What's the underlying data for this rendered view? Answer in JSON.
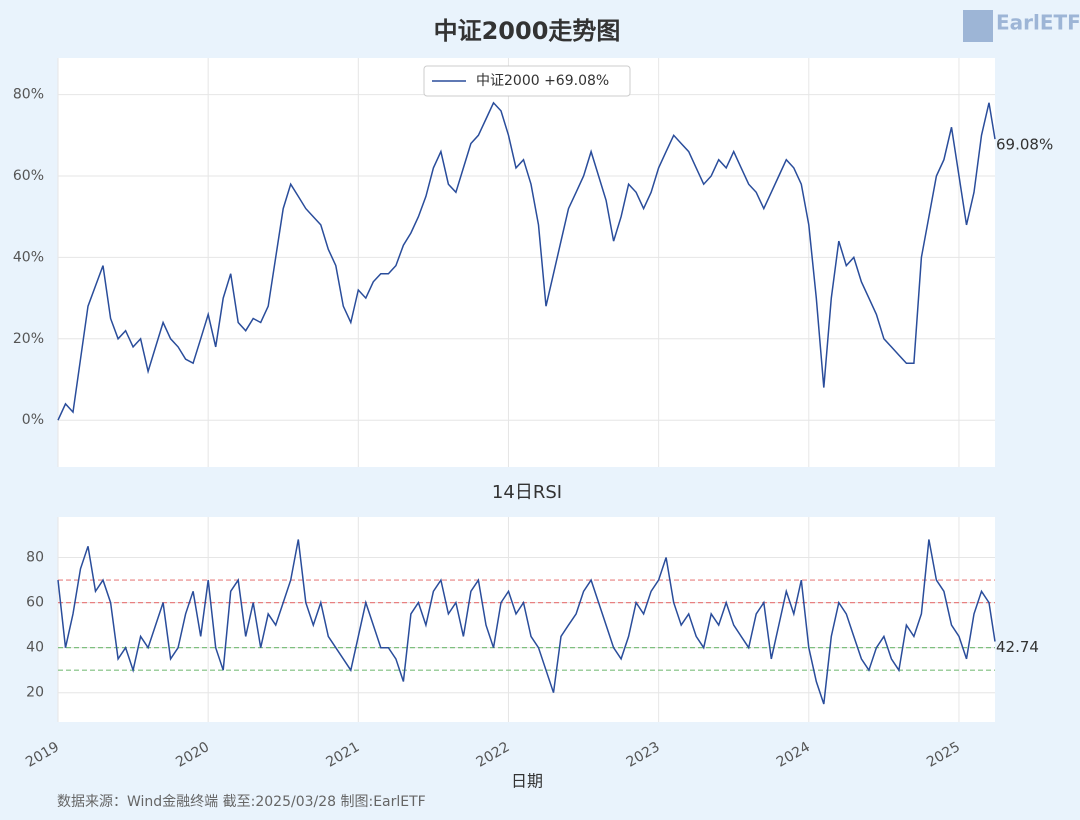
{
  "logo": "EarlETF",
  "source": "数据来源：Wind金融终端 截至:2025/03/28 制图:EarlETF",
  "chart_data": [
    {
      "type": "line",
      "title": "中证2000走势图",
      "x": [
        2019,
        2019.05,
        2019.1,
        2019.15,
        2019.2,
        2019.25,
        2019.3,
        2019.35,
        2019.4,
        2019.45,
        2019.5,
        2019.55,
        2019.6,
        2019.65,
        2019.7,
        2019.75,
        2019.8,
        2019.85,
        2019.9,
        2019.95,
        2020,
        2020.05,
        2020.1,
        2020.15,
        2020.2,
        2020.25,
        2020.3,
        2020.35,
        2020.4,
        2020.45,
        2020.5,
        2020.55,
        2020.6,
        2020.65,
        2020.7,
        2020.75,
        2020.8,
        2020.85,
        2020.9,
        2020.95,
        2021,
        2021.05,
        2021.1,
        2021.15,
        2021.2,
        2021.25,
        2021.3,
        2021.35,
        2021.4,
        2021.45,
        2021.5,
        2021.55,
        2021.6,
        2021.65,
        2021.7,
        2021.75,
        2021.8,
        2021.85,
        2021.9,
        2021.95,
        2022,
        2022.05,
        2022.1,
        2022.15,
        2022.2,
        2022.25,
        2022.3,
        2022.35,
        2022.4,
        2022.45,
        2022.5,
        2022.55,
        2022.6,
        2022.65,
        2022.7,
        2022.75,
        2022.8,
        2022.85,
        2022.9,
        2022.95,
        2023,
        2023.05,
        2023.1,
        2023.15,
        2023.2,
        2023.25,
        2023.3,
        2023.35,
        2023.4,
        2023.45,
        2023.5,
        2023.55,
        2023.6,
        2023.65,
        2023.7,
        2023.75,
        2023.8,
        2023.85,
        2023.9,
        2023.95,
        2024,
        2024.05,
        2024.1,
        2024.15,
        2024.2,
        2024.25,
        2024.3,
        2024.35,
        2024.4,
        2024.45,
        2024.5,
        2024.55,
        2024.6,
        2024.65,
        2024.7,
        2024.75,
        2024.8,
        2024.85,
        2024.9,
        2024.95,
        2025,
        2025.05,
        2025.1,
        2025.15,
        2025.2,
        2025.24
      ],
      "series": [
        {
          "name": "中证2000  +69.08%",
          "color": "#2a4d9b",
          "values": [
            0,
            4,
            2,
            15,
            28,
            33,
            38,
            25,
            20,
            22,
            18,
            20,
            12,
            18,
            24,
            20,
            18,
            15,
            14,
            20,
            26,
            18,
            30,
            36,
            24,
            22,
            25,
            24,
            28,
            40,
            52,
            58,
            55,
            52,
            50,
            48,
            42,
            38,
            28,
            24,
            32,
            30,
            34,
            36,
            36,
            38,
            43,
            46,
            50,
            55,
            62,
            66,
            58,
            56,
            62,
            68,
            70,
            74,
            78,
            76,
            70,
            62,
            64,
            58,
            48,
            28,
            36,
            44,
            52,
            56,
            60,
            66,
            60,
            54,
            44,
            50,
            58,
            56,
            52,
            56,
            62,
            66,
            70,
            68,
            66,
            62,
            58,
            60,
            64,
            62,
            66,
            62,
            58,
            56,
            52,
            56,
            60,
            64,
            62,
            58,
            48,
            30,
            8,
            30,
            44,
            38,
            40,
            34,
            30,
            26,
            20,
            18,
            16,
            14,
            14,
            40,
            50,
            60,
            64,
            72,
            60,
            48,
            56,
            70,
            78,
            69.08
          ]
        }
      ],
      "annotations": [
        {
          "text": "69.08%",
          "x": 2025.24,
          "y": 69.08
        }
      ],
      "xlim": [
        2019,
        2025.24
      ],
      "xticks": [
        2019,
        2020,
        2021,
        2022,
        2023,
        2024,
        2025
      ],
      "ylim": [
        -11.5,
        89
      ],
      "yticks": [
        {
          "value": 0,
          "label": "0%"
        },
        {
          "value": 20,
          "label": "20%"
        },
        {
          "value": 40,
          "label": "40%"
        },
        {
          "value": 60,
          "label": "60%"
        },
        {
          "value": 80,
          "label": "80%"
        }
      ],
      "grid": true,
      "legend": "top"
    },
    {
      "type": "line",
      "title": "14日RSI",
      "xlabel": "日期",
      "x": [
        2019,
        2019.05,
        2019.1,
        2019.15,
        2019.2,
        2019.25,
        2019.3,
        2019.35,
        2019.4,
        2019.45,
        2019.5,
        2019.55,
        2019.6,
        2019.65,
        2019.7,
        2019.75,
        2019.8,
        2019.85,
        2019.9,
        2019.95,
        2020,
        2020.05,
        2020.1,
        2020.15,
        2020.2,
        2020.25,
        2020.3,
        2020.35,
        2020.4,
        2020.45,
        2020.5,
        2020.55,
        2020.6,
        2020.65,
        2020.7,
        2020.75,
        2020.8,
        2020.85,
        2020.9,
        2020.95,
        2021,
        2021.05,
        2021.1,
        2021.15,
        2021.2,
        2021.25,
        2021.3,
        2021.35,
        2021.4,
        2021.45,
        2021.5,
        2021.55,
        2021.6,
        2021.65,
        2021.7,
        2021.75,
        2021.8,
        2021.85,
        2021.9,
        2021.95,
        2022,
        2022.05,
        2022.1,
        2022.15,
        2022.2,
        2022.25,
        2022.3,
        2022.35,
        2022.4,
        2022.45,
        2022.5,
        2022.55,
        2022.6,
        2022.65,
        2022.7,
        2022.75,
        2022.8,
        2022.85,
        2022.9,
        2022.95,
        2023,
        2023.05,
        2023.1,
        2023.15,
        2023.2,
        2023.25,
        2023.3,
        2023.35,
        2023.4,
        2023.45,
        2023.5,
        2023.55,
        2023.6,
        2023.65,
        2023.7,
        2023.75,
        2023.8,
        2023.85,
        2023.9,
        2023.95,
        2024,
        2024.05,
        2024.1,
        2024.15,
        2024.2,
        2024.25,
        2024.3,
        2024.35,
        2024.4,
        2024.45,
        2024.5,
        2024.55,
        2024.6,
        2024.65,
        2024.7,
        2024.75,
        2024.8,
        2024.85,
        2024.9,
        2024.95,
        2025,
        2025.05,
        2025.1,
        2025.15,
        2025.2,
        2025.24
      ],
      "series": [
        {
          "name": "14日RSI",
          "color": "#2a4d9b",
          "values": [
            70,
            40,
            55,
            75,
            85,
            65,
            70,
            60,
            35,
            40,
            30,
            45,
            40,
            50,
            60,
            35,
            40,
            55,
            65,
            45,
            70,
            40,
            30,
            65,
            70,
            45,
            60,
            40,
            55,
            50,
            60,
            70,
            88,
            60,
            50,
            60,
            45,
            40,
            35,
            30,
            45,
            60,
            50,
            40,
            40,
            35,
            25,
            55,
            60,
            50,
            65,
            70,
            55,
            60,
            45,
            65,
            70,
            50,
            40,
            60,
            65,
            55,
            60,
            45,
            40,
            30,
            20,
            45,
            50,
            55,
            65,
            70,
            60,
            50,
            40,
            35,
            45,
            60,
            55,
            65,
            70,
            80,
            60,
            50,
            55,
            45,
            40,
            55,
            50,
            60,
            50,
            45,
            40,
            55,
            60,
            35,
            50,
            65,
            55,
            70,
            40,
            25,
            15,
            45,
            60,
            55,
            45,
            35,
            30,
            40,
            45,
            35,
            30,
            50,
            45,
            55,
            88,
            70,
            65,
            50,
            45,
            35,
            55,
            65,
            60,
            42.74
          ]
        }
      ],
      "annotations": [
        {
          "text": "42.74",
          "x": 2025.24,
          "y": 42.74
        }
      ],
      "hlines": [
        {
          "value": 70,
          "color": "#e88080"
        },
        {
          "value": 60,
          "color": "#e88080"
        },
        {
          "value": 40,
          "color": "#7fbf7f"
        },
        {
          "value": 30,
          "color": "#7fbf7f"
        }
      ],
      "xlim": [
        2019,
        2025.24
      ],
      "xticks": [
        2019,
        2020,
        2021,
        2022,
        2023,
        2024,
        2025
      ],
      "ylim": [
        7,
        98
      ],
      "yticks": [
        20,
        40,
        60,
        80
      ],
      "grid": true
    }
  ]
}
